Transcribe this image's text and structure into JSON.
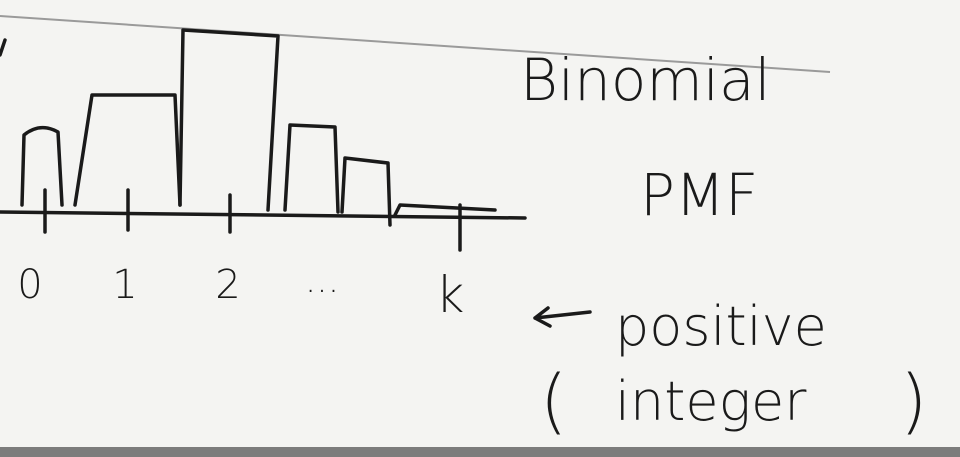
{
  "heading": {
    "line1": "Binomial",
    "line2": "PMF"
  },
  "axis": {
    "labels": [
      "0",
      "1",
      "2",
      "...",
      "k"
    ]
  },
  "note": {
    "line1": "positive",
    "open": "(",
    "line2": "integer",
    "close": ")"
  }
}
